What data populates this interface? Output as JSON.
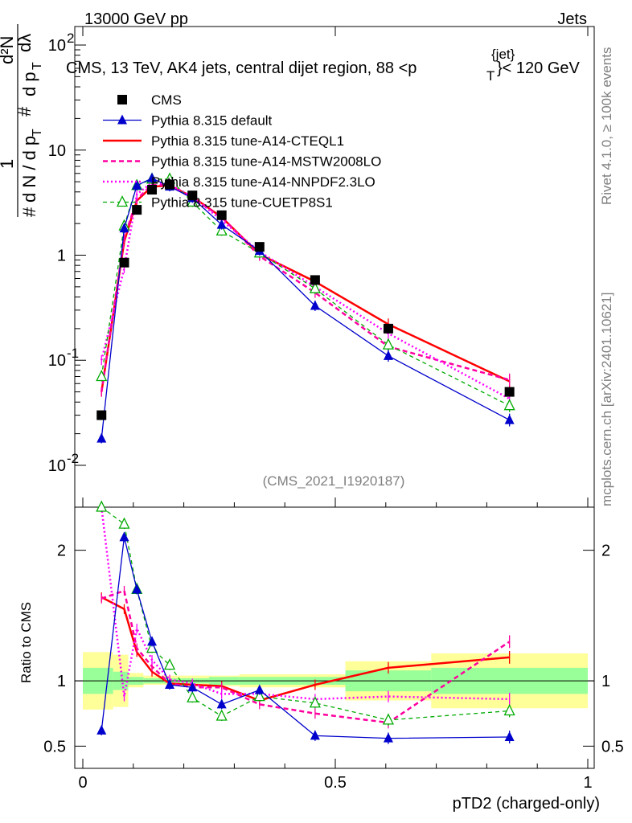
{
  "header": {
    "left": "13000 GeV pp",
    "right": "Jets"
  },
  "plot_title": "CMS, 13 TeV, AK4 jets, central dijet region, 88 <p",
  "plot_title_sup": "{jet}",
  "plot_title_sub": "T",
  "plot_title_end": "}< 120 GeV",
  "side_labels": {
    "rivet": "Rivet 4.1.0, ≥ 100k events",
    "mcplots": "mcplots.cern.ch [arXiv:2401.10621]"
  },
  "watermark": "(CMS_2021_I1920187)",
  "ratio_ylabel": "Ratio to CMS",
  "ylabel": "1/N dN/dpT d2N/dpT dlambda",
  "colors": {
    "cms": "#000000",
    "default": "#0000cc",
    "cteql1": "#ff0000",
    "mstw": "#ff00a0",
    "nnpdf": "#ff00ff",
    "cuetp": "#00aa00",
    "band_green": "#99ff99",
    "band_yellow": "#ffff99"
  },
  "chart_data": [
    {
      "type": "line",
      "panel": "main",
      "yscale": "log",
      "xlabel": "pTD2 (charged-only)",
      "xlim": [
        0,
        1
      ],
      "ylim": [
        0.004,
        150
      ],
      "x_ticks": [
        "0",
        "0.5",
        "1"
      ],
      "y_ticks": [
        "10^-2",
        "10^-1",
        "1",
        "10",
        "10^2"
      ],
      "x": [
        0.037,
        0.082,
        0.107,
        0.137,
        0.172,
        0.217,
        0.275,
        0.35,
        0.46,
        0.605,
        0.845
      ],
      "series": [
        {
          "name": "CMS",
          "key": "cms",
          "values": [
            0.03,
            0.85,
            2.7,
            4.2,
            4.7,
            3.7,
            2.4,
            1.2,
            0.58,
            0.2,
            0.05
          ]
        },
        {
          "name": "Pythia 8.315 default",
          "key": "default",
          "values": [
            0.018,
            1.8,
            4.6,
            5.4,
            4.5,
            3.5,
            1.95,
            1.1,
            0.33,
            0.11,
            0.027
          ]
        },
        {
          "name": "Pythia 8.315 tune-A14-CTEQL1",
          "key": "cteql1",
          "values": [
            0.05,
            1.35,
            3.3,
            4.5,
            4.6,
            3.6,
            2.3,
            1.02,
            0.56,
            0.22,
            0.063
          ]
        },
        {
          "name": "Pythia 8.315 tune-A14-MSTW2008LO",
          "key": "mstw",
          "values": [
            0.05,
            1.45,
            3.4,
            4.7,
            4.6,
            3.5,
            2.3,
            0.98,
            0.44,
            0.135,
            0.065
          ]
        },
        {
          "name": "Pythia 8.315 tune-A14-NNPDF2.3LO",
          "key": "nnpdf",
          "values": [
            0.1,
            0.75,
            3.8,
            4.9,
            4.7,
            3.6,
            2.15,
            1.08,
            0.5,
            0.18,
            0.043
          ]
        },
        {
          "name": "Pythia 8.315 tune-CUETP8S1",
          "key": "cuetp",
          "values": [
            0.07,
            1.9,
            4.6,
            5.3,
            5.3,
            3.2,
            1.7,
            1.05,
            0.48,
            0.14,
            0.037
          ]
        }
      ]
    },
    {
      "type": "line",
      "panel": "ratio",
      "ylabel": "Ratio to CMS",
      "ylim": [
        0.33,
        2.33
      ],
      "y_ticks": [
        "0.5",
        "1",
        "2"
      ],
      "x": [
        0.037,
        0.082,
        0.107,
        0.137,
        0.172,
        0.217,
        0.275,
        0.35,
        0.46,
        0.605,
        0.845
      ],
      "bands": [
        {
          "x0": 0,
          "x1": 0.06,
          "inner": [
            0.9,
            1.1
          ],
          "outer": [
            0.78,
            1.22
          ]
        },
        {
          "x0": 0.06,
          "x1": 0.09,
          "inner": [
            0.93,
            1.07
          ],
          "outer": [
            0.8,
            1.2
          ]
        },
        {
          "x0": 0.09,
          "x1": 0.12,
          "inner": [
            0.97,
            1.03
          ],
          "outer": [
            0.95,
            1.06
          ]
        },
        {
          "x0": 0.12,
          "x1": 0.195,
          "inner": [
            0.98,
            1.02
          ],
          "outer": [
            0.97,
            1.04
          ]
        },
        {
          "x0": 0.195,
          "x1": 0.25,
          "inner": [
            0.98,
            1.02
          ],
          "outer": [
            0.97,
            1.04
          ]
        },
        {
          "x0": 0.25,
          "x1": 0.31,
          "inner": [
            0.97,
            1.03
          ],
          "outer": [
            0.96,
            1.04
          ]
        },
        {
          "x0": 0.31,
          "x1": 0.52,
          "inner": [
            0.97,
            1.03
          ],
          "outer": [
            0.95,
            1.05
          ]
        },
        {
          "x0": 0.52,
          "x1": 0.69,
          "inner": [
            0.92,
            1.08
          ],
          "outer": [
            0.85,
            1.15
          ]
        },
        {
          "x0": 0.69,
          "x1": 1.0,
          "inner": [
            0.9,
            1.1
          ],
          "outer": [
            0.79,
            1.21
          ]
        }
      ],
      "series": [
        {
          "name": "Pythia 8.315 default",
          "key": "default",
          "values": [
            0.62,
            2.1,
            1.7,
            1.3,
            0.97,
            0.95,
            0.82,
            0.93,
            0.58,
            0.56,
            0.57
          ]
        },
        {
          "name": "Pythia 8.315 tune-A14-CTEQL1",
          "key": "cteql1",
          "values": [
            1.64,
            1.55,
            1.22,
            1.07,
            0.98,
            0.97,
            0.96,
            0.85,
            0.97,
            1.1,
            1.18
          ]
        },
        {
          "name": "Pythia 8.315 tune-A14-MSTW2008LO",
          "key": "mstw",
          "values": [
            1.63,
            1.69,
            1.25,
            1.11,
            0.98,
            0.95,
            0.95,
            0.82,
            0.75,
            0.68,
            1.3
          ]
        },
        {
          "name": "Pythia 8.315 tune-A14-NNPDF2.3LO",
          "key": "nnpdf",
          "values": [
            3.33,
            0.88,
            1.4,
            1.16,
            1.01,
            0.98,
            0.9,
            0.9,
            0.86,
            0.88,
            0.86
          ]
        },
        {
          "name": "Pythia 8.315 tune-CUETP8S1",
          "key": "cuetp",
          "values": [
            2.33,
            2.2,
            1.7,
            1.25,
            1.12,
            0.87,
            0.73,
            0.88,
            0.83,
            0.7,
            0.77
          ]
        }
      ]
    }
  ]
}
